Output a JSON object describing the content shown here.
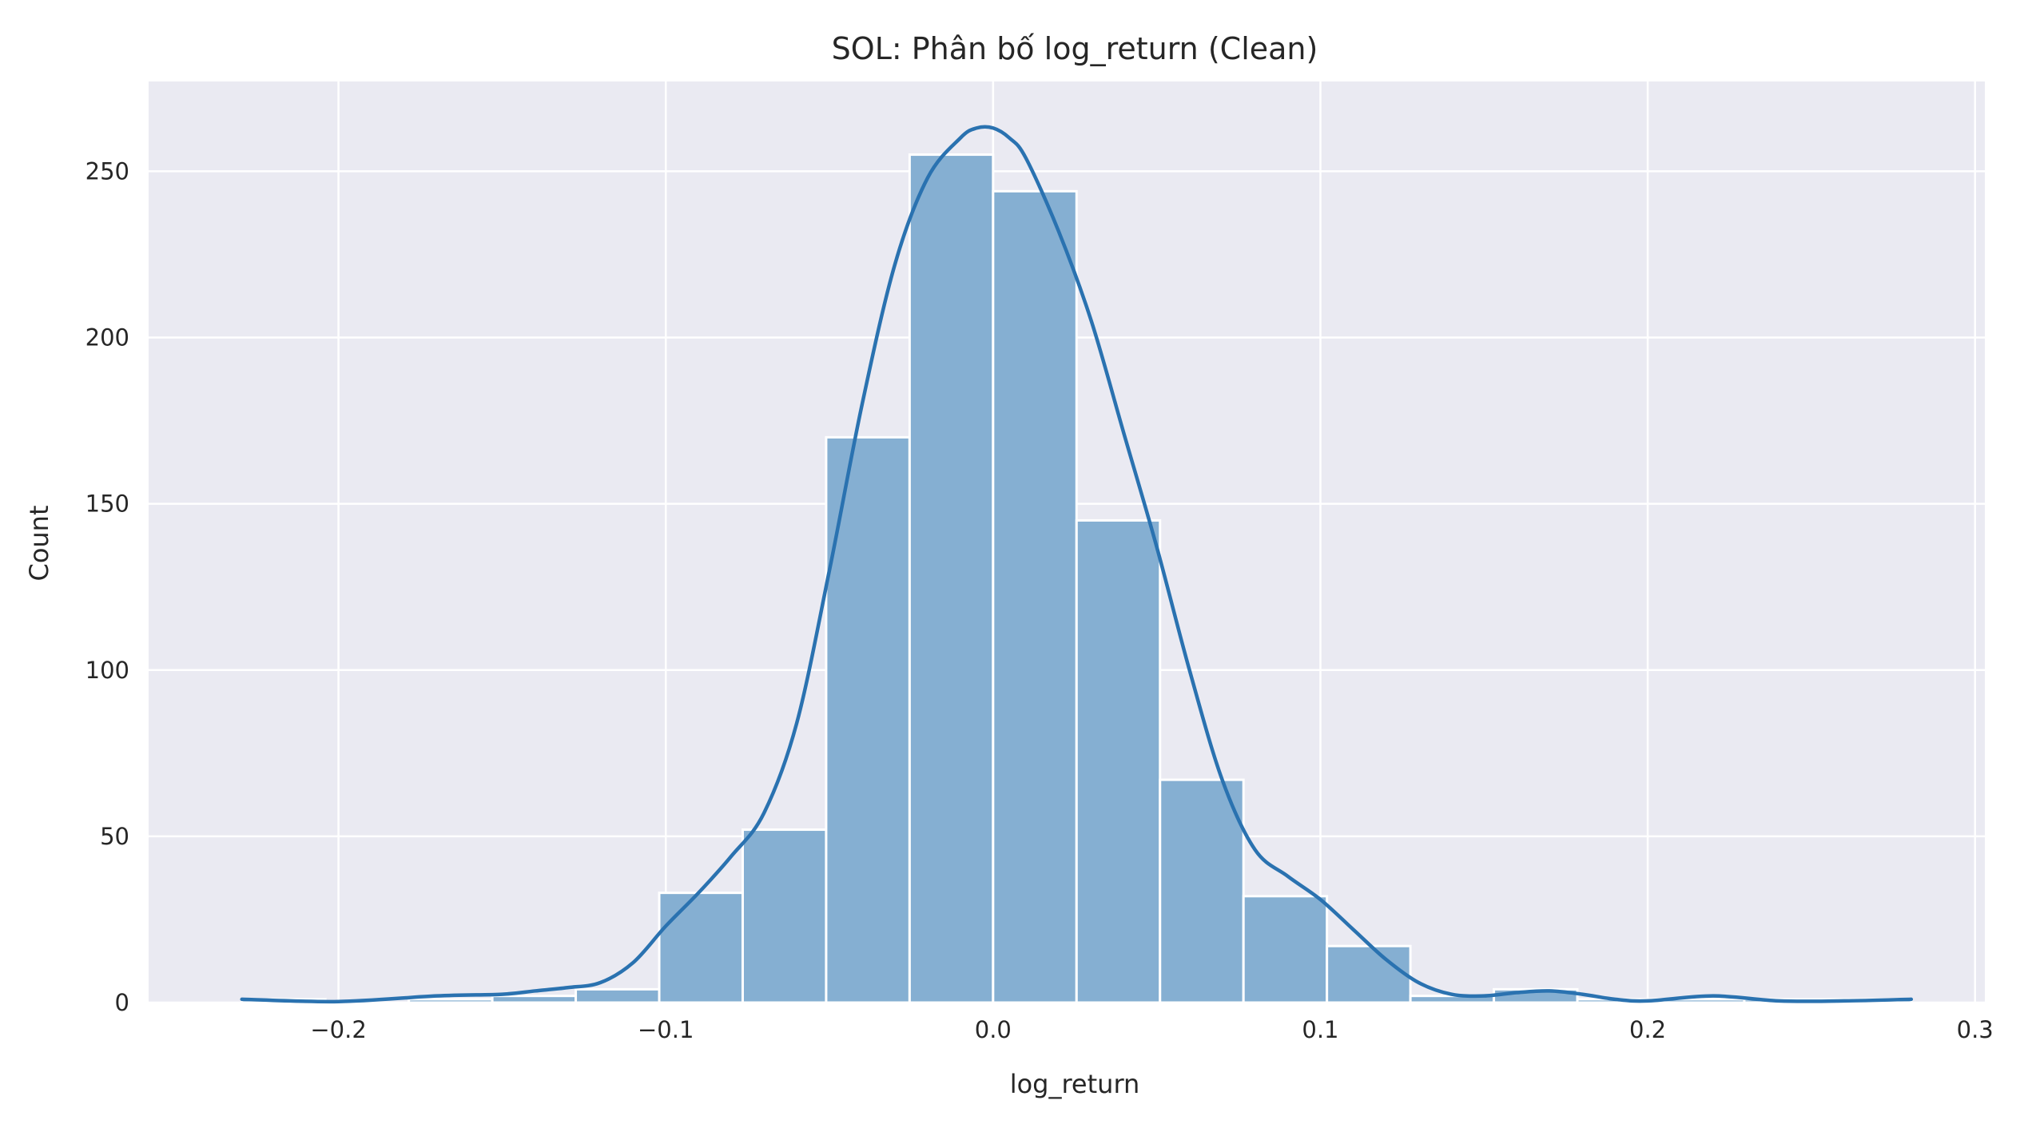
{
  "chart_data": {
    "type": "bar",
    "subtype": "histogram_with_kde",
    "title": "SOL: Phân bố log_return (Clean)",
    "xlabel": "log_return",
    "ylabel": "Count",
    "xlim": [
      -0.258,
      0.303
    ],
    "ylim": [
      0,
      277
    ],
    "grid": true,
    "x_ticks": [
      {
        "value": -0.2,
        "label": "−0.2"
      },
      {
        "value": -0.1,
        "label": "−0.1"
      },
      {
        "value": 0.0,
        "label": "0.0"
      },
      {
        "value": 0.1,
        "label": "0.1"
      },
      {
        "value": 0.2,
        "label": "0.2"
      },
      {
        "value": 0.3,
        "label": "0.3"
      }
    ],
    "y_ticks": [
      {
        "value": 0,
        "label": "0"
      },
      {
        "value": 50,
        "label": "50"
      },
      {
        "value": 100,
        "label": "100"
      },
      {
        "value": 150,
        "label": "150"
      },
      {
        "value": 200,
        "label": "200"
      },
      {
        "value": 250,
        "label": "250"
      }
    ],
    "bins": [
      {
        "x0": -0.2295,
        "x1": -0.204,
        "count": 1
      },
      {
        "x0": -0.204,
        "x1": -0.1785,
        "count": 0
      },
      {
        "x0": -0.1785,
        "x1": -0.153,
        "count": 1
      },
      {
        "x0": -0.153,
        "x1": -0.1275,
        "count": 2
      },
      {
        "x0": -0.1275,
        "x1": -0.102,
        "count": 4
      },
      {
        "x0": -0.102,
        "x1": -0.0765,
        "count": 33
      },
      {
        "x0": -0.0765,
        "x1": -0.051,
        "count": 52
      },
      {
        "x0": -0.051,
        "x1": -0.0255,
        "count": 170
      },
      {
        "x0": -0.0255,
        "x1": 0.0,
        "count": 255
      },
      {
        "x0": 0.0,
        "x1": 0.0255,
        "count": 244
      },
      {
        "x0": 0.0255,
        "x1": 0.051,
        "count": 145
      },
      {
        "x0": 0.051,
        "x1": 0.0765,
        "count": 67
      },
      {
        "x0": 0.0765,
        "x1": 0.102,
        "count": 32
      },
      {
        "x0": 0.102,
        "x1": 0.1275,
        "count": 17
      },
      {
        "x0": 0.1275,
        "x1": 0.153,
        "count": 2
      },
      {
        "x0": 0.153,
        "x1": 0.1785,
        "count": 4
      },
      {
        "x0": 0.1785,
        "x1": 0.204,
        "count": 1
      },
      {
        "x0": 0.204,
        "x1": 0.2295,
        "count": 1
      },
      {
        "x0": 0.2295,
        "x1": 0.255,
        "count": 1
      },
      {
        "x0": 0.255,
        "x1": 0.2805,
        "count": 1
      }
    ],
    "kde": {
      "x": [
        -0.2295,
        -0.2,
        -0.17,
        -0.15,
        -0.14,
        -0.13,
        -0.12,
        -0.11,
        -0.1,
        -0.09,
        -0.08,
        -0.07,
        -0.06,
        -0.05,
        -0.04,
        -0.03,
        -0.02,
        -0.01,
        -0.005,
        0.0,
        0.005,
        0.01,
        0.02,
        0.03,
        0.04,
        0.05,
        0.06,
        0.07,
        0.08,
        0.09,
        0.1,
        0.11,
        0.12,
        0.13,
        0.14,
        0.15,
        0.16,
        0.17,
        0.18,
        0.19,
        0.2,
        0.22,
        0.24,
        0.26,
        0.2805
      ],
      "y": [
        1,
        0.3,
        2,
        2.5,
        3.5,
        4.5,
        6,
        12,
        23,
        33,
        44,
        57,
        84,
        130,
        180,
        222,
        248,
        260,
        263,
        263,
        260,
        254,
        232,
        205,
        171,
        137,
        100,
        67,
        46,
        38,
        31,
        22,
        13,
        6,
        2.5,
        2,
        3,
        3.5,
        2.5,
        1,
        0.5,
        2,
        0.5,
        0.5,
        1
      ]
    },
    "colors": {
      "background": "#eaeaf2",
      "bar": "#85afd2",
      "kde_line": "#2a72b0",
      "grid": "#ffffff"
    }
  }
}
